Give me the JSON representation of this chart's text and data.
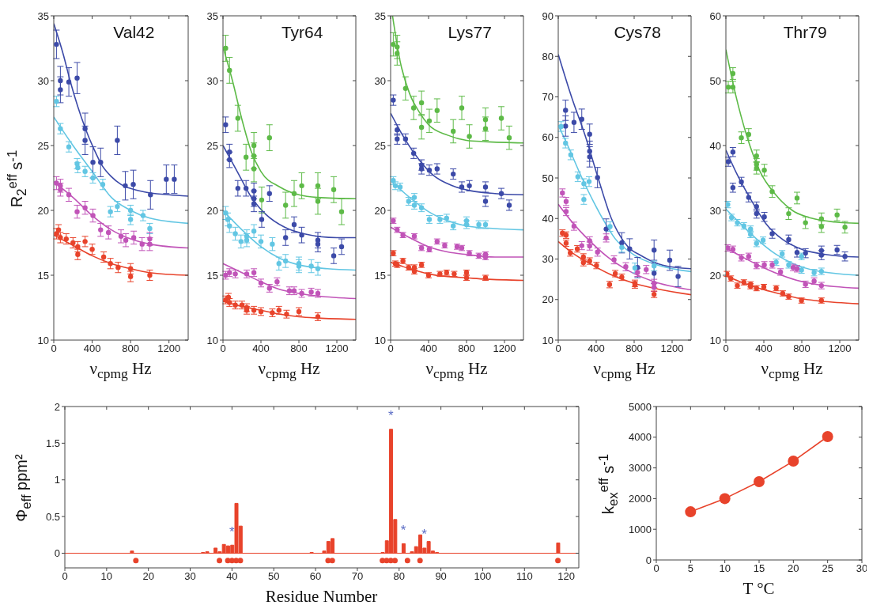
{
  "chart_data": [
    {
      "type": "scatter",
      "title": "Val42",
      "xlabel": "ν$_{cpmg}$ Hz",
      "ylabel": "R$_{2}$$^{eff}$ s$^{-1}$",
      "xlim": [
        0,
        1400
      ],
      "xticks": [
        0,
        400,
        800,
        1200
      ],
      "ylim": [
        10,
        35
      ],
      "yticks": [
        10,
        15,
        20,
        25,
        30,
        35
      ],
      "marker": "circle",
      "series": [
        {
          "type": "line",
          "marker": "none",
          "color": "#3c4aa8",
          "x": [
            0,
            100,
            170,
            250,
            330,
            420,
            500,
            600,
            700,
            900,
            1200,
            1400
          ],
          "values": [
            34.4,
            32,
            30,
            28,
            26.3,
            24.7,
            23.5,
            22.6,
            22,
            21.5,
            21.2,
            21.1
          ]
        },
        {
          "type": "line",
          "marker": "none",
          "color": "#62c6e3",
          "x": [
            0,
            200,
            400,
            600,
            800,
            1000,
            1400
          ],
          "values": [
            27.2,
            25,
            23,
            21,
            20,
            19.4,
            19.0
          ]
        },
        {
          "type": "line",
          "marker": "none",
          "color": "#c154b8",
          "x": [
            0,
            200,
            400,
            600,
            800,
            1000,
            1400
          ],
          "values": [
            22.2,
            21,
            19.6,
            18.5,
            17.8,
            17.4,
            17.1
          ]
        },
        {
          "type": "line",
          "marker": "none",
          "color": "#e8432b",
          "x": [
            0,
            200,
            400,
            600,
            800,
            1000,
            1400
          ],
          "values": [
            18.1,
            17.3,
            16.5,
            15.9,
            15.5,
            15.2,
            15.0
          ]
        },
        {
          "color": "#3c4aa8",
          "x": [
            28,
            69,
            69,
            157,
            243,
            326,
            326,
            408,
            488,
            662,
            745,
            828,
            1007,
            1172,
            1255
          ],
          "values": [
            32.8,
            30.0,
            29.3,
            29.9,
            30.2,
            26.3,
            25.4,
            23.7,
            23.7,
            25.4,
            21.9,
            22.0,
            21.2,
            22.4,
            22.4
          ],
          "errors": [
            1.1,
            1.1,
            1.0,
            1.1,
            1.2,
            1.2,
            1.1,
            1.2,
            1.1,
            1.1,
            1.1,
            1.1,
            1.1,
            1.1,
            1.1
          ]
        },
        {
          "color": "#62c6e3",
          "x": [
            28,
            69,
            157,
            243,
            250,
            326,
            408,
            510,
            590,
            662,
            800,
            800,
            930,
            1000
          ],
          "values": [
            28.4,
            26.3,
            24.9,
            23.6,
            23.3,
            23.0,
            22.5,
            22.0,
            19.9,
            20.3,
            20.0,
            19.3,
            19.6,
            18.6
          ],
          "errors": [
            0.4,
            0.4,
            0.4,
            0.4,
            0.4,
            0.4,
            0.4,
            0.4,
            0.4,
            0.4,
            0.4,
            0.4,
            0.4,
            0.4
          ]
        },
        {
          "color": "#c154b8",
          "x": [
            28,
            69,
            69,
            157,
            243,
            326,
            408,
            488,
            570,
            700,
            750,
            833,
            920,
            1000,
            1000
          ],
          "values": [
            22.1,
            21.9,
            21.6,
            21.2,
            19.9,
            20.2,
            19.6,
            18.5,
            18.3,
            18.0,
            17.7,
            17.9,
            17.4,
            17.8,
            17.4
          ],
          "errors": [
            0.5,
            0.5,
            0.5,
            0.5,
            0.5,
            0.5,
            0.5,
            0.5,
            0.5,
            0.5,
            0.5,
            0.5,
            0.5,
            0.5,
            0.5
          ]
        },
        {
          "color": "#e8432b",
          "x": [
            28,
            50,
            69,
            130,
            200,
            250,
            250,
            326,
            400,
            520,
            590,
            670,
            800,
            800,
            1000
          ],
          "values": [
            18.2,
            18.5,
            17.9,
            17.8,
            17.5,
            17.2,
            16.6,
            17.6,
            17.0,
            16.4,
            15.9,
            15.6,
            15.5,
            14.9,
            15.0
          ],
          "errors": [
            0.4,
            0.4,
            0.4,
            0.4,
            0.4,
            0.4,
            0.4,
            0.4,
            0.4,
            0.4,
            0.4,
            0.4,
            0.4,
            0.4,
            0.4
          ]
        }
      ]
    },
    {
      "type": "scatter",
      "title": "Tyr64",
      "xlabel": "ν$_{cpmg}$ Hz",
      "xlim": [
        0,
        1400
      ],
      "xticks": [
        0,
        400,
        800,
        1200
      ],
      "ylim": [
        10,
        35
      ],
      "yticks": [
        10,
        15,
        20,
        25,
        30,
        35
      ],
      "marker": "circle",
      "series": [
        {
          "type": "line",
          "marker": "none",
          "color": "#5dba47",
          "x": [
            0,
            100,
            200,
            300,
            400,
            600,
            800,
            1000,
            1400
          ],
          "values": [
            32.6,
            30,
            27,
            24.5,
            23,
            21.8,
            21.2,
            21.0,
            20.9
          ]
        },
        {
          "type": "line",
          "marker": "none",
          "color": "#3c4aa8",
          "x": [
            0,
            150,
            300,
            450,
            650,
            850,
            1200,
            1400
          ],
          "values": [
            25,
            23,
            21,
            19.7,
            18.7,
            18.2,
            17.9,
            17.9
          ]
        },
        {
          "type": "line",
          "marker": "none",
          "color": "#62c6e3",
          "x": [
            0,
            200,
            400,
            600,
            800,
            1100,
            1400
          ],
          "values": [
            20,
            18.5,
            17.2,
            16.3,
            15.8,
            15.5,
            15.4
          ]
        },
        {
          "type": "line",
          "marker": "none",
          "color": "#c154b8",
          "x": [
            0,
            200,
            400,
            600,
            800,
            1000,
            1400
          ],
          "values": [
            15.9,
            15.2,
            14.5,
            13.9,
            13.6,
            13.4,
            13.2
          ]
        },
        {
          "type": "line",
          "marker": "none",
          "color": "#e8432b",
          "x": [
            0,
            200,
            400,
            600,
            800,
            1000,
            1400
          ],
          "values": [
            13.0,
            12.6,
            12.3,
            12.0,
            11.8,
            11.7,
            11.6
          ]
        },
        {
          "color": "#5dba47",
          "x": [
            28,
            69,
            157,
            243,
            326,
            326,
            326,
            408,
            490,
            660,
            750,
            830,
            1000,
            1000,
            1167,
            1250
          ],
          "values": [
            32.5,
            30.8,
            27.1,
            24.1,
            25.0,
            24.2,
            23.2,
            20.8,
            25.6,
            20.4,
            21.3,
            21.9,
            21.9,
            20.7,
            21.6,
            19.9
          ],
          "errors": [
            1.0,
            1.0,
            1.0,
            1.0,
            1.0,
            1.0,
            1.0,
            1.0,
            1.0,
            1.0,
            1.0,
            1.0,
            1.0,
            1.0,
            1.0,
            1.0
          ]
        },
        {
          "color": "#3c4aa8",
          "x": [
            28,
            69,
            69,
            157,
            243,
            326,
            326,
            326,
            408,
            490,
            660,
            750,
            830,
            1000,
            1000,
            1167,
            1250
          ],
          "values": [
            26.6,
            24.5,
            23.9,
            21.7,
            21.7,
            21.5,
            20.9,
            20.5,
            19.3,
            21.3,
            17.9,
            18.9,
            18.1,
            17.7,
            17.4,
            16.5,
            17.2
          ],
          "errors": [
            0.6,
            0.6,
            0.6,
            0.6,
            0.6,
            0.6,
            0.6,
            0.6,
            0.6,
            0.6,
            0.6,
            0.6,
            0.6,
            0.6,
            0.6,
            0.6,
            0.6
          ]
        },
        {
          "color": "#62c6e3",
          "x": [
            28,
            50,
            69,
            130,
            190,
            250,
            250,
            326,
            400,
            520,
            590,
            660,
            800,
            800,
            930,
            1000
          ],
          "values": [
            19.8,
            19.3,
            18.8,
            18.2,
            17.6,
            18.0,
            17.7,
            18.4,
            17.6,
            17.4,
            15.9,
            16.1,
            15.9,
            15.7,
            15.7,
            15.5
          ],
          "errors": [
            0.5,
            0.5,
            0.5,
            0.5,
            0.5,
            0.5,
            0.5,
            0.5,
            0.5,
            0.5,
            0.5,
            0.5,
            0.5,
            0.5,
            0.5,
            0.5
          ]
        },
        {
          "color": "#c154b8",
          "x": [
            28,
            69,
            130,
            250,
            326,
            400,
            490,
            570,
            700,
            750,
            830,
            930,
            1000
          ],
          "values": [
            15.0,
            15.2,
            15.1,
            15.1,
            15.2,
            14.4,
            14.0,
            14.5,
            13.8,
            13.8,
            13.6,
            13.7,
            13.6
          ],
          "errors": [
            0.3,
            0.3,
            0.3,
            0.3,
            0.3,
            0.3,
            0.3,
            0.3,
            0.3,
            0.3,
            0.3,
            0.3,
            0.3
          ]
        },
        {
          "color": "#e8432b",
          "x": [
            28,
            58,
            69,
            130,
            200,
            250,
            250,
            326,
            400,
            520,
            590,
            670,
            800,
            1000
          ],
          "values": [
            13.1,
            13.3,
            12.9,
            12.7,
            12.7,
            12.5,
            12.3,
            12.3,
            12.2,
            12.1,
            12.3,
            12.0,
            12.2,
            11.8
          ],
          "errors": [
            0.3,
            0.3,
            0.3,
            0.3,
            0.3,
            0.3,
            0.3,
            0.3,
            0.3,
            0.3,
            0.3,
            0.3,
            0.3,
            0.3
          ]
        }
      ]
    },
    {
      "type": "scatter",
      "title": "Lys77",
      "xlabel": "ν$_{cpmg}$ Hz",
      "xlim": [
        0,
        1400
      ],
      "xticks": [
        0,
        400,
        800,
        1200
      ],
      "ylim": [
        10,
        35
      ],
      "yticks": [
        10,
        15,
        20,
        25,
        30,
        35
      ],
      "marker": "circle",
      "series": [
        {
          "type": "line",
          "marker": "none",
          "color": "#5dba47",
          "x": [
            20,
            100,
            200,
            300,
            400,
            600,
            800,
            1000,
            1400
          ],
          "values": [
            35,
            31.5,
            29,
            27.6,
            26.6,
            25.8,
            25.4,
            25.3,
            25.2
          ]
        },
        {
          "type": "line",
          "marker": "none",
          "color": "#3c4aa8",
          "x": [
            0,
            150,
            300,
            450,
            650,
            850,
            1100,
            1400
          ],
          "values": [
            27.5,
            25.5,
            23.9,
            22.7,
            21.9,
            21.5,
            21.3,
            21.2
          ]
        },
        {
          "type": "line",
          "marker": "none",
          "color": "#62c6e3",
          "x": [
            0,
            200,
            400,
            600,
            800,
            1100,
            1400
          ],
          "values": [
            22.3,
            21,
            19.9,
            19.2,
            18.8,
            18.6,
            18.5
          ]
        },
        {
          "type": "line",
          "marker": "none",
          "color": "#c154b8",
          "x": [
            0,
            200,
            400,
            600,
            800,
            1100,
            1400
          ],
          "values": [
            18.7,
            17.9,
            17.2,
            16.8,
            16.6,
            16.4,
            16.4
          ]
        },
        {
          "type": "line",
          "marker": "none",
          "color": "#e8432b",
          "x": [
            0,
            200,
            400,
            600,
            800,
            1000,
            1400
          ],
          "values": [
            16.0,
            15.5,
            15.1,
            14.9,
            14.8,
            14.7,
            14.6
          ]
        },
        {
          "color": "#5dba47",
          "x": [
            28,
            69,
            69,
            157,
            243,
            326,
            326,
            408,
            490,
            660,
            750,
            830,
            1000,
            1000,
            1167,
            1250
          ],
          "values": [
            32.8,
            32.6,
            32.1,
            29.4,
            27.9,
            28.3,
            26.4,
            26.9,
            27.7,
            26.1,
            27.9,
            25.7,
            27.0,
            26.3,
            27.1,
            25.6
          ],
          "errors": [
            0.9,
            0.9,
            0.9,
            0.9,
            0.9,
            0.9,
            0.9,
            0.9,
            0.9,
            0.9,
            0.9,
            0.9,
            0.9,
            0.9,
            0.9,
            0.9
          ]
        },
        {
          "color": "#3c4aa8",
          "x": [
            28,
            69,
            69,
            157,
            243,
            326,
            326,
            408,
            490,
            660,
            750,
            830,
            1000,
            1000,
            1167,
            1250
          ],
          "values": [
            28.5,
            26.2,
            25.5,
            25.5,
            24.4,
            23.5,
            23.2,
            23.1,
            23.2,
            22.8,
            21.8,
            21.9,
            21.8,
            20.7,
            21.3,
            20.4
          ],
          "errors": [
            0.4,
            0.4,
            0.4,
            0.4,
            0.4,
            0.4,
            0.4,
            0.4,
            0.4,
            0.4,
            0.4,
            0.4,
            0.4,
            0.4,
            0.4,
            0.4
          ]
        },
        {
          "color": "#62c6e3",
          "x": [
            28,
            50,
            100,
            190,
            250,
            250,
            326,
            408,
            520,
            590,
            660,
            800,
            800,
            930,
            1000
          ],
          "values": [
            22.3,
            21.9,
            21.8,
            20.7,
            21.0,
            20.4,
            20.2,
            19.3,
            19.3,
            19.4,
            18.8,
            19.2,
            18.9,
            18.9,
            18.9
          ],
          "errors": [
            0.3,
            0.3,
            0.3,
            0.3,
            0.3,
            0.3,
            0.3,
            0.3,
            0.3,
            0.3,
            0.3,
            0.3,
            0.3,
            0.3,
            0.3
          ]
        },
        {
          "color": "#c154b8",
          "x": [
            28,
            69,
            130,
            250,
            326,
            408,
            490,
            570,
            700,
            750,
            830,
            930,
            1000,
            1000
          ],
          "values": [
            19.2,
            18.5,
            18.1,
            18.0,
            17.1,
            17.0,
            17.6,
            17.3,
            17.2,
            17.1,
            16.7,
            16.5,
            16.6,
            16.4
          ],
          "errors": [
            0.2,
            0.2,
            0.2,
            0.2,
            0.2,
            0.2,
            0.2,
            0.2,
            0.2,
            0.2,
            0.2,
            0.2,
            0.2,
            0.2
          ]
        },
        {
          "color": "#e8432b",
          "x": [
            28,
            50,
            69,
            130,
            190,
            250,
            250,
            326,
            400,
            520,
            590,
            670,
            800,
            800,
            1000
          ],
          "values": [
            16.7,
            15.9,
            15.8,
            16.1,
            15.6,
            15.6,
            15.3,
            15.8,
            15.0,
            15.1,
            15.2,
            15.1,
            15.2,
            14.8,
            14.8
          ],
          "errors": [
            0.2,
            0.2,
            0.2,
            0.2,
            0.2,
            0.2,
            0.2,
            0.2,
            0.2,
            0.2,
            0.2,
            0.2,
            0.2,
            0.2,
            0.2
          ]
        }
      ]
    },
    {
      "type": "scatter",
      "title": "Cys78",
      "xlabel": "ν$_{cpmg}$ Hz",
      "xlim": [
        0,
        1400
      ],
      "xticks": [
        0,
        400,
        800,
        1200
      ],
      "ylim": [
        10,
        90
      ],
      "yticks": [
        10,
        20,
        30,
        40,
        50,
        60,
        70,
        80,
        90
      ],
      "marker": "circle",
      "series": [
        {
          "type": "line",
          "marker": "none",
          "color": "#3c4aa8",
          "x": [
            0,
            140,
            290,
            420,
            560,
            700,
            900,
            1100,
            1400
          ],
          "values": [
            80.5,
            70,
            60,
            50,
            40,
            34,
            30.5,
            28.5,
            27.6
          ]
        },
        {
          "type": "line",
          "marker": "none",
          "color": "#62c6e3",
          "x": [
            0,
            100,
            250,
            420,
            600,
            800,
            1050,
            1400
          ],
          "values": [
            63,
            58,
            50,
            42,
            35,
            31,
            28.5,
            26.9
          ]
        },
        {
          "type": "line",
          "marker": "none",
          "color": "#c154b8",
          "x": [
            0,
            150,
            330,
            520,
            750,
            1000,
            1400
          ],
          "values": [
            43.5,
            39,
            34.5,
            30.5,
            27,
            24.5,
            22.4
          ]
        },
        {
          "type": "line",
          "marker": "none",
          "color": "#e8432b",
          "x": [
            0,
            150,
            330,
            550,
            800,
            1050,
            1400
          ],
          "values": [
            34.3,
            31.5,
            28.9,
            26.2,
            24,
            22.6,
            21.2
          ]
        },
        {
          "color": "#3c4aa8",
          "x": [
            77,
            77,
            166,
            248,
            331,
            331,
            331,
            414,
            505,
            670,
            753,
            836,
            1010,
            1010,
            1175,
            1263
          ],
          "values": [
            66.7,
            62.8,
            63.7,
            64.5,
            60.8,
            56.6,
            55.2,
            50.1,
            37.4,
            34.0,
            32.5,
            27.9,
            32.2,
            26.5,
            29.7,
            25.7
          ],
          "errors": [
            2.5,
            2.5,
            2.5,
            2.5,
            2.5,
            2.5,
            2.5,
            2.5,
            2.5,
            2.5,
            2.5,
            2.5,
            2.5,
            2.5,
            2.5,
            2.5
          ]
        },
        {
          "color": "#62c6e3",
          "x": [
            30,
            77,
            132,
            207,
            270,
            270,
            325,
            546,
            670,
            808,
            1010
          ],
          "values": [
            62.7,
            58.6,
            55.7,
            50.3,
            48.6,
            44.7,
            49.1,
            38.0,
            32.9,
            27.8,
            28.3
          ],
          "errors": [
            1.2,
            1.2,
            1.2,
            1.2,
            1.2,
            1.2,
            1.2,
            1.2,
            1.2,
            1.2,
            1.2
          ]
        },
        {
          "color": "#c154b8",
          "x": [
            44,
            83,
            83,
            166,
            248,
            331,
            331,
            414,
            505,
            588,
            712,
            836,
            927,
            1010,
            1010
          ],
          "values": [
            46.3,
            44.2,
            41.7,
            38.1,
            33.3,
            34.5,
            33.2,
            31.7,
            35.2,
            29.8,
            28.1,
            26.7,
            27.4,
            24.0,
            23.0
          ],
          "errors": [
            1.0,
            1.0,
            1.0,
            1.0,
            1.0,
            1.0,
            1.0,
            1.0,
            1.0,
            1.0,
            1.0,
            1.0,
            1.0,
            1.0,
            1.0
          ]
        },
        {
          "color": "#e8432b",
          "x": [
            44,
            83,
            83,
            127,
            201,
            265,
            265,
            331,
            403,
            541,
            601,
            670,
            808,
            808,
            1010
          ],
          "values": [
            36.4,
            35.9,
            33.9,
            31.5,
            32.5,
            30.5,
            29.1,
            29.5,
            28.4,
            23.7,
            26.4,
            25.5,
            24.0,
            23.6,
            21.3
          ],
          "errors": [
            0.8,
            0.8,
            0.8,
            0.8,
            0.8,
            0.8,
            0.8,
            0.8,
            0.8,
            0.8,
            0.8,
            0.8,
            0.8,
            0.8,
            0.8
          ]
        }
      ]
    },
    {
      "type": "scatter",
      "title": "Thr79",
      "xlabel": "ν$_{cpmg}$ Hz",
      "xlim": [
        0,
        1400
      ],
      "xticks": [
        0,
        400,
        800,
        1200
      ],
      "ylim": [
        10,
        60
      ],
      "yticks": [
        10,
        20,
        30,
        40,
        50,
        60
      ],
      "marker": "circle",
      "series": [
        {
          "type": "line",
          "marker": "none",
          "color": "#5dba47",
          "x": [
            0,
            100,
            220,
            360,
            520,
            700,
            900,
            1150,
            1400
          ],
          "values": [
            54.8,
            48,
            41.5,
            36,
            32.5,
            30,
            28.8,
            28.2,
            28.0
          ]
        },
        {
          "type": "line",
          "marker": "none",
          "color": "#3c4aa8",
          "x": [
            0,
            120,
            270,
            420,
            600,
            800,
            1050,
            1400
          ],
          "values": [
            39.3,
            35.5,
            31.5,
            28,
            25.5,
            24,
            23.2,
            22.8
          ]
        },
        {
          "type": "line",
          "marker": "none",
          "color": "#62c6e3",
          "x": [
            0,
            150,
            330,
            520,
            720,
            950,
            1400
          ],
          "values": [
            30.2,
            28,
            25.5,
            23.3,
            21.7,
            20.7,
            20.0
          ]
        },
        {
          "type": "line",
          "marker": "none",
          "color": "#c154b8",
          "x": [
            0,
            150,
            350,
            550,
            750,
            950,
            1400
          ],
          "values": [
            24.2,
            23,
            21.5,
            20.2,
            19.2,
            18.6,
            18.0
          ]
        },
        {
          "type": "line",
          "marker": "none",
          "color": "#e8432b",
          "x": [
            0,
            150,
            350,
            550,
            750,
            1000,
            1400
          ],
          "values": [
            19.9,
            19,
            18,
            17.2,
            16.5,
            16,
            15.6
          ]
        },
        {
          "color": "#5dba47",
          "x": [
            25,
            74,
            74,
            163,
            240,
            323,
            323,
            323,
            405,
            488,
            662,
            750,
            839,
            1007,
            1007,
            1172,
            1255
          ],
          "values": [
            49.0,
            51.1,
            49.0,
            41.2,
            41.7,
            38.4,
            37.1,
            36.5,
            36.2,
            32.9,
            29.5,
            31.9,
            28.1,
            28.7,
            27.5,
            29.3,
            27.4
          ],
          "errors": [
            0.9,
            0.9,
            0.9,
            0.9,
            0.9,
            0.9,
            0.9,
            0.9,
            0.9,
            0.9,
            0.9,
            0.9,
            0.9,
            0.9,
            0.9,
            0.9,
            0.9
          ]
        },
        {
          "color": "#3c4aa8",
          "x": [
            25,
            74,
            74,
            163,
            240,
            323,
            323,
            405,
            488,
            662,
            750,
            839,
            1007,
            1007,
            1172,
            1255
          ],
          "values": [
            37.5,
            39.0,
            33.5,
            34.4,
            32.0,
            30.6,
            29.5,
            29.0,
            26.4,
            25.5,
            23.5,
            23.4,
            23.8,
            23.1,
            23.9,
            22.9
          ],
          "errors": [
            0.7,
            0.7,
            0.7,
            0.7,
            0.7,
            0.7,
            0.7,
            0.7,
            0.7,
            0.7,
            0.7,
            0.7,
            0.7,
            0.7,
            0.7,
            0.7
          ]
        },
        {
          "color": "#62c6e3",
          "x": [
            20,
            60,
            121,
            190,
            260,
            260,
            323,
            392,
            530,
            593,
            662,
            797,
            797,
            930,
            1007
          ],
          "values": [
            30.9,
            28.9,
            28.1,
            27.6,
            27.1,
            26.3,
            24.9,
            25.4,
            22.0,
            23.3,
            21.6,
            22.9,
            20.8,
            20.4,
            20.6
          ],
          "errors": [
            0.5,
            0.5,
            0.5,
            0.5,
            0.5,
            0.5,
            0.5,
            0.5,
            0.5,
            0.5,
            0.5,
            0.5,
            0.5,
            0.5,
            0.5
          ]
        },
        {
          "color": "#c154b8",
          "x": [
            20,
            74,
            163,
            240,
            323,
            405,
            488,
            576,
            709,
            750,
            839,
            930,
            1007
          ],
          "values": [
            24.2,
            24.0,
            22.7,
            22.9,
            21.5,
            21.6,
            21.6,
            20.5,
            21.2,
            21.0,
            18.6,
            19.1,
            18.4
          ],
          "errors": [
            0.5,
            0.5,
            0.5,
            0.5,
            0.5,
            0.5,
            0.5,
            0.5,
            0.5,
            0.5,
            0.5,
            0.5,
            0.5
          ]
        },
        {
          "color": "#e8432b",
          "x": [
            11,
            52,
            121,
            190,
            260,
            260,
            323,
            400,
            530,
            599,
            662,
            797,
            1007
          ],
          "values": [
            20.2,
            19.5,
            18.4,
            18.9,
            18.6,
            18.3,
            18.0,
            18.2,
            18.0,
            17.2,
            16.7,
            16.1,
            16.1
          ],
          "errors": [
            0.4,
            0.4,
            0.4,
            0.4,
            0.4,
            0.4,
            0.4,
            0.4,
            0.4,
            0.4,
            0.4,
            0.4,
            0.4
          ]
        }
      ]
    },
    {
      "type": "bar",
      "xlabel": "Residue Number",
      "ylabel": "Φ$_{eff}$  ppm²",
      "xlim": [
        0,
        123
      ],
      "xticks": [
        0,
        10,
        20,
        30,
        40,
        50,
        60,
        70,
        80,
        90,
        100,
        110,
        120
      ],
      "ylim": [
        -0.2,
        2
      ],
      "yticks": [
        0,
        0.5,
        1,
        1.5,
        2
      ],
      "ref_lines": [
        {
          "axis": "y",
          "value": 0,
          "color": "#e8432b"
        }
      ],
      "annotations": [
        {
          "text": "*",
          "x": 40,
          "y": 0.11
        },
        {
          "text": "*",
          "x": 78,
          "y": 1.69
        },
        {
          "text": "*",
          "x": 81,
          "y": 0.13
        },
        {
          "text": "*",
          "x": 86,
          "y": 0.07
        }
      ],
      "series": [
        {
          "color": "#e8432b",
          "x": [
            16,
            33,
            34,
            37,
            38,
            42,
            59,
            63,
            64,
            76,
            77,
            78,
            79,
            83,
            85,
            88,
            89
          ],
          "values": [
            0.03,
            0.01,
            0.02,
            0.02,
            0.12,
            0.37,
            0.01,
            0.16,
            0.2,
            0.01,
            0.17,
            1.69,
            0.46,
            0.02,
            0.25,
            0.03,
            0.01
          ]
        },
        {
          "color": "#e8432b",
          "x": [
            36,
            39,
            40,
            41,
            62,
            81,
            84,
            86,
            87,
            118
          ],
          "values": [
            0.07,
            0.1,
            0.11,
            0.68,
            0.03,
            0.13,
            0.09,
            0.07,
            0.16,
            0.14
          ]
        },
        {
          "type": "scatter",
          "marker": "circle",
          "color": "#e8432b",
          "x": [
            17,
            37,
            39,
            40,
            63,
            64,
            82,
            118
          ],
          "values": [
            -0.1,
            -0.1,
            -0.1,
            -0.1,
            -0.1,
            -0.1,
            -0.1,
            -0.1
          ]
        },
        {
          "type": "scatter",
          "marker": "circle",
          "color": "#e8432b",
          "x": [
            41,
            42,
            76,
            77,
            78,
            79,
            85
          ],
          "values": [
            -0.1,
            -0.1,
            -0.1,
            -0.1,
            -0.1,
            -0.1,
            -0.1
          ]
        }
      ]
    },
    {
      "type": "line",
      "xlabel": "T °C",
      "ylabel": "k$_{ex}$$^{eff}$  s$^{-1}$",
      "xlim": [
        0,
        30
      ],
      "xticks": [
        0,
        5,
        10,
        15,
        20,
        25,
        30
      ],
      "ylim": [
        0,
        5000
      ],
      "yticks": [
        0,
        1000,
        2000,
        3000,
        4000,
        5000
      ],
      "marker": "circle",
      "color": "#e8432b",
      "x": [
        5,
        10,
        15,
        20,
        25
      ],
      "values": [
        1570,
        2000,
        2550,
        3220,
        4020
      ]
    }
  ]
}
